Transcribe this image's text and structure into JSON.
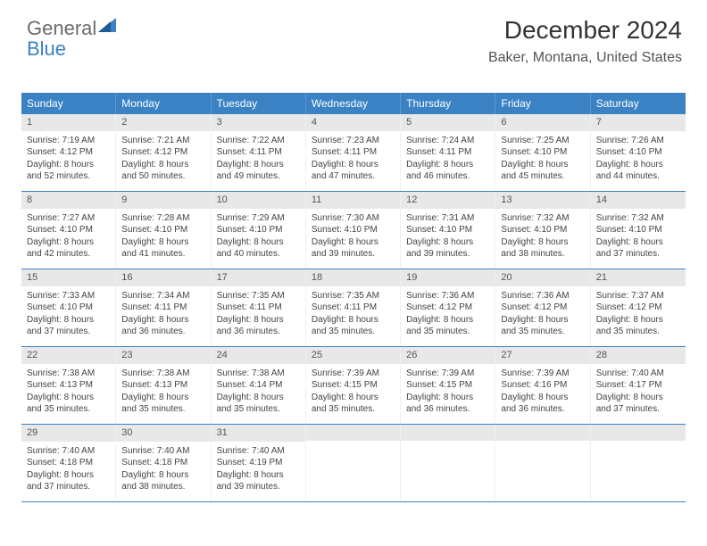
{
  "logo": {
    "text1": "General",
    "text2": "Blue",
    "accent": "#3b82c4",
    "gray": "#6b6b6b"
  },
  "header": {
    "title": "December 2024",
    "subtitle": "Baker, Montana, United States"
  },
  "colors": {
    "header_bg": "#3b82c4",
    "daynum_bg": "#e8e8e8",
    "rule": "#3b82c4"
  },
  "dow": [
    "Sunday",
    "Monday",
    "Tuesday",
    "Wednesday",
    "Thursday",
    "Friday",
    "Saturday"
  ],
  "weeks": [
    [
      {
        "n": "1",
        "sr": "Sunrise: 7:19 AM",
        "ss": "Sunset: 4:12 PM",
        "d1": "Daylight: 8 hours",
        "d2": "and 52 minutes."
      },
      {
        "n": "2",
        "sr": "Sunrise: 7:21 AM",
        "ss": "Sunset: 4:12 PM",
        "d1": "Daylight: 8 hours",
        "d2": "and 50 minutes."
      },
      {
        "n": "3",
        "sr": "Sunrise: 7:22 AM",
        "ss": "Sunset: 4:11 PM",
        "d1": "Daylight: 8 hours",
        "d2": "and 49 minutes."
      },
      {
        "n": "4",
        "sr": "Sunrise: 7:23 AM",
        "ss": "Sunset: 4:11 PM",
        "d1": "Daylight: 8 hours",
        "d2": "and 47 minutes."
      },
      {
        "n": "5",
        "sr": "Sunrise: 7:24 AM",
        "ss": "Sunset: 4:11 PM",
        "d1": "Daylight: 8 hours",
        "d2": "and 46 minutes."
      },
      {
        "n": "6",
        "sr": "Sunrise: 7:25 AM",
        "ss": "Sunset: 4:10 PM",
        "d1": "Daylight: 8 hours",
        "d2": "and 45 minutes."
      },
      {
        "n": "7",
        "sr": "Sunrise: 7:26 AM",
        "ss": "Sunset: 4:10 PM",
        "d1": "Daylight: 8 hours",
        "d2": "and 44 minutes."
      }
    ],
    [
      {
        "n": "8",
        "sr": "Sunrise: 7:27 AM",
        "ss": "Sunset: 4:10 PM",
        "d1": "Daylight: 8 hours",
        "d2": "and 42 minutes."
      },
      {
        "n": "9",
        "sr": "Sunrise: 7:28 AM",
        "ss": "Sunset: 4:10 PM",
        "d1": "Daylight: 8 hours",
        "d2": "and 41 minutes."
      },
      {
        "n": "10",
        "sr": "Sunrise: 7:29 AM",
        "ss": "Sunset: 4:10 PM",
        "d1": "Daylight: 8 hours",
        "d2": "and 40 minutes."
      },
      {
        "n": "11",
        "sr": "Sunrise: 7:30 AM",
        "ss": "Sunset: 4:10 PM",
        "d1": "Daylight: 8 hours",
        "d2": "and 39 minutes."
      },
      {
        "n": "12",
        "sr": "Sunrise: 7:31 AM",
        "ss": "Sunset: 4:10 PM",
        "d1": "Daylight: 8 hours",
        "d2": "and 39 minutes."
      },
      {
        "n": "13",
        "sr": "Sunrise: 7:32 AM",
        "ss": "Sunset: 4:10 PM",
        "d1": "Daylight: 8 hours",
        "d2": "and 38 minutes."
      },
      {
        "n": "14",
        "sr": "Sunrise: 7:32 AM",
        "ss": "Sunset: 4:10 PM",
        "d1": "Daylight: 8 hours",
        "d2": "and 37 minutes."
      }
    ],
    [
      {
        "n": "15",
        "sr": "Sunrise: 7:33 AM",
        "ss": "Sunset: 4:10 PM",
        "d1": "Daylight: 8 hours",
        "d2": "and 37 minutes."
      },
      {
        "n": "16",
        "sr": "Sunrise: 7:34 AM",
        "ss": "Sunset: 4:11 PM",
        "d1": "Daylight: 8 hours",
        "d2": "and 36 minutes."
      },
      {
        "n": "17",
        "sr": "Sunrise: 7:35 AM",
        "ss": "Sunset: 4:11 PM",
        "d1": "Daylight: 8 hours",
        "d2": "and 36 minutes."
      },
      {
        "n": "18",
        "sr": "Sunrise: 7:35 AM",
        "ss": "Sunset: 4:11 PM",
        "d1": "Daylight: 8 hours",
        "d2": "and 35 minutes."
      },
      {
        "n": "19",
        "sr": "Sunrise: 7:36 AM",
        "ss": "Sunset: 4:12 PM",
        "d1": "Daylight: 8 hours",
        "d2": "and 35 minutes."
      },
      {
        "n": "20",
        "sr": "Sunrise: 7:36 AM",
        "ss": "Sunset: 4:12 PM",
        "d1": "Daylight: 8 hours",
        "d2": "and 35 minutes."
      },
      {
        "n": "21",
        "sr": "Sunrise: 7:37 AM",
        "ss": "Sunset: 4:12 PM",
        "d1": "Daylight: 8 hours",
        "d2": "and 35 minutes."
      }
    ],
    [
      {
        "n": "22",
        "sr": "Sunrise: 7:38 AM",
        "ss": "Sunset: 4:13 PM",
        "d1": "Daylight: 8 hours",
        "d2": "and 35 minutes."
      },
      {
        "n": "23",
        "sr": "Sunrise: 7:38 AM",
        "ss": "Sunset: 4:13 PM",
        "d1": "Daylight: 8 hours",
        "d2": "and 35 minutes."
      },
      {
        "n": "24",
        "sr": "Sunrise: 7:38 AM",
        "ss": "Sunset: 4:14 PM",
        "d1": "Daylight: 8 hours",
        "d2": "and 35 minutes."
      },
      {
        "n": "25",
        "sr": "Sunrise: 7:39 AM",
        "ss": "Sunset: 4:15 PM",
        "d1": "Daylight: 8 hours",
        "d2": "and 35 minutes."
      },
      {
        "n": "26",
        "sr": "Sunrise: 7:39 AM",
        "ss": "Sunset: 4:15 PM",
        "d1": "Daylight: 8 hours",
        "d2": "and 36 minutes."
      },
      {
        "n": "27",
        "sr": "Sunrise: 7:39 AM",
        "ss": "Sunset: 4:16 PM",
        "d1": "Daylight: 8 hours",
        "d2": "and 36 minutes."
      },
      {
        "n": "28",
        "sr": "Sunrise: 7:40 AM",
        "ss": "Sunset: 4:17 PM",
        "d1": "Daylight: 8 hours",
        "d2": "and 37 minutes."
      }
    ],
    [
      {
        "n": "29",
        "sr": "Sunrise: 7:40 AM",
        "ss": "Sunset: 4:18 PM",
        "d1": "Daylight: 8 hours",
        "d2": "and 37 minutes."
      },
      {
        "n": "30",
        "sr": "Sunrise: 7:40 AM",
        "ss": "Sunset: 4:18 PM",
        "d1": "Daylight: 8 hours",
        "d2": "and 38 minutes."
      },
      {
        "n": "31",
        "sr": "Sunrise: 7:40 AM",
        "ss": "Sunset: 4:19 PM",
        "d1": "Daylight: 8 hours",
        "d2": "and 39 minutes."
      },
      {
        "empty": true
      },
      {
        "empty": true
      },
      {
        "empty": true
      },
      {
        "empty": true
      }
    ]
  ]
}
